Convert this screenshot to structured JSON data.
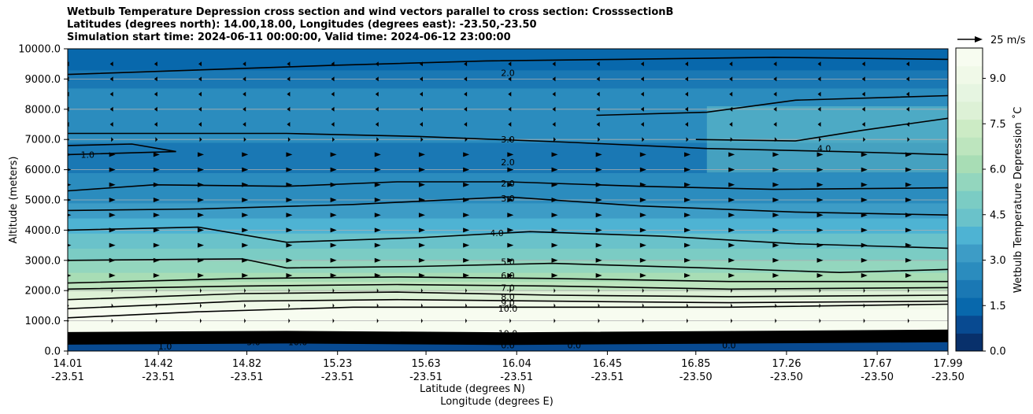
{
  "chart_data": {
    "type": "contour",
    "title_lines": [
      "Wetbulb Temperature Depression cross section and wind vectors parallel to cross section: CrosssectionB",
      "Latitudes (degrees north): 14.00,18.00, Longitudes (degrees east): -23.50,-23.50",
      "Simulation start time: 2024-06-11 00:00:00, Valid time: 2024-06-12 23:00:00"
    ],
    "ylabel": "Altitude (meters)",
    "xlabel_lat": "Latitude (degrees N)",
    "xlabel_lon": "Longitude (degrees E)",
    "ylim": [
      0,
      10000
    ],
    "y_ticks": [
      "0.0",
      "1000.0",
      "2000.0",
      "3000.0",
      "4000.0",
      "5000.0",
      "6000.0",
      "7000.0",
      "8000.0",
      "9000.0",
      "10000.0"
    ],
    "x_ticks": [
      {
        "lat": "14.01",
        "lon": "-23.51"
      },
      {
        "lat": "14.42",
        "lon": "-23.51"
      },
      {
        "lat": "14.82",
        "lon": "-23.51"
      },
      {
        "lat": "15.23",
        "lon": "-23.51"
      },
      {
        "lat": "15.63",
        "lon": "-23.51"
      },
      {
        "lat": "16.04",
        "lon": "-23.51"
      },
      {
        "lat": "16.45",
        "lon": "-23.51"
      },
      {
        "lat": "16.85",
        "lon": "-23.50"
      },
      {
        "lat": "17.26",
        "lon": "-23.50"
      },
      {
        "lat": "17.67",
        "lon": "-23.50"
      },
      {
        "lat": "17.99",
        "lon": "-23.50"
      }
    ],
    "colorbar": {
      "label": "Wetbulb Temperature Depression $^\\circ$C",
      "label_display": "Wetbulb Temperature Depression ˚C",
      "min": 0,
      "max": 10,
      "ticks": [
        "0.0",
        "1.5",
        "3.0",
        "4.5",
        "6.0",
        "7.5",
        "9.0"
      ],
      "colormap": "GnBu_r",
      "colors": [
        "#08306b",
        "#084a91",
        "#0868ac",
        "#1a78b4",
        "#2b8cbe",
        "#3d9cc6",
        "#4eb3d3",
        "#6ac2ca",
        "#7bccc4",
        "#93d6be",
        "#a8ddb5",
        "#bde5be",
        "#ccebc5",
        "#ddf1d6",
        "#e6f5e1",
        "#f0f9e8",
        "#f7fcf0"
      ]
    },
    "contour_labels": [
      {
        "value": "2.0",
        "lat": 16.0,
        "alt": 9200
      },
      {
        "value": "1.0",
        "lat": 14.1,
        "alt": 6500
      },
      {
        "value": "3.0",
        "lat": 16.0,
        "alt": 7000
      },
      {
        "value": "2.0",
        "lat": 16.0,
        "alt": 6250
      },
      {
        "value": "4.0",
        "lat": 17.43,
        "alt": 6700
      },
      {
        "value": "2.0",
        "lat": 16.0,
        "alt": 5550
      },
      {
        "value": "3.0",
        "lat": 16.0,
        "alt": 5050
      },
      {
        "value": "4.0",
        "lat": 15.95,
        "alt": 3900
      },
      {
        "value": "5.0",
        "lat": 16.0,
        "alt": 2950
      },
      {
        "value": "6.0",
        "lat": 16.0,
        "alt": 2500
      },
      {
        "value": "7.0",
        "lat": 16.0,
        "alt": 2100
      },
      {
        "value": "8.0",
        "lat": 16.0,
        "alt": 1800
      },
      {
        "value": "9.0",
        "lat": 16.0,
        "alt": 1600
      },
      {
        "value": "10.0",
        "lat": 16.0,
        "alt": 1400
      },
      {
        "value": "10.0",
        "lat": 16.0,
        "alt": 580
      },
      {
        "value": "0.0",
        "lat": 16.0,
        "alt": 200
      },
      {
        "value": "0.0",
        "lat": 16.3,
        "alt": 200
      },
      {
        "value": "0.0",
        "lat": 17.0,
        "alt": 200
      },
      {
        "value": "1.0",
        "lat": 14.45,
        "alt": 150
      },
      {
        "value": "5.0",
        "lat": 14.85,
        "alt": 300
      },
      {
        "value": "10.0",
        "lat": 15.05,
        "alt": 300
      }
    ],
    "wind_reference": {
      "label": "25 m/s",
      "speed": 25
    }
  }
}
